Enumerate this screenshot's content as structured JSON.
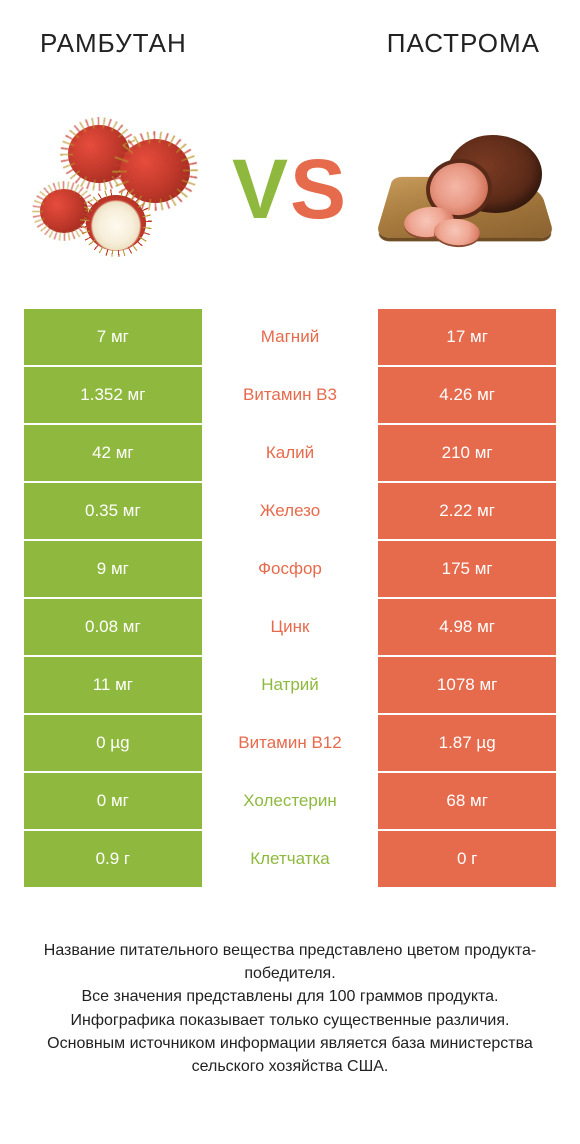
{
  "colors": {
    "left": "#8fb93e",
    "right": "#e66a4c",
    "text": "#222222",
    "background": "#ffffff"
  },
  "header": {
    "left_title": "РАМБУТАН",
    "right_title": "ПАСТРОМА"
  },
  "vs": {
    "v": "V",
    "s": "S"
  },
  "rows": [
    {
      "left": "7 мг",
      "label": "Магний",
      "right": "17 мг",
      "winner": "right"
    },
    {
      "left": "1.352 мг",
      "label": "Витамин B3",
      "right": "4.26 мг",
      "winner": "right"
    },
    {
      "left": "42 мг",
      "label": "Калий",
      "right": "210 мг",
      "winner": "right"
    },
    {
      "left": "0.35 мг",
      "label": "Железо",
      "right": "2.22 мг",
      "winner": "right"
    },
    {
      "left": "9 мг",
      "label": "Фосфор",
      "right": "175 мг",
      "winner": "right"
    },
    {
      "left": "0.08 мг",
      "label": "Цинк",
      "right": "4.98 мг",
      "winner": "right"
    },
    {
      "left": "11 мг",
      "label": "Натрий",
      "right": "1078 мг",
      "winner": "left"
    },
    {
      "left": "0 µg",
      "label": "Витамин B12",
      "right": "1.87 µg",
      "winner": "right"
    },
    {
      "left": "0 мг",
      "label": "Холестерин",
      "right": "68 мг",
      "winner": "left"
    },
    {
      "left": "0.9 г",
      "label": "Клетчатка",
      "right": "0 г",
      "winner": "left"
    }
  ],
  "footer": {
    "line1": "Название питательного вещества представлено цветом продукта-победителя.",
    "line2": "Все значения представлены для 100 граммов продукта.",
    "line3": "Инфографика показывает только существенные различия.",
    "line4": "Основным источником информации является база министерства сельского хозяйства США."
  }
}
